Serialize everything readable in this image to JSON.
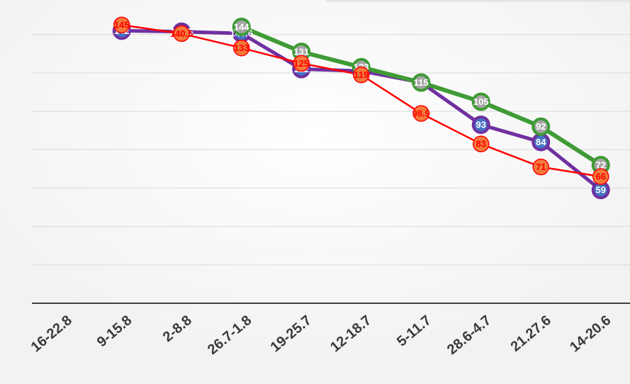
{
  "chart_data": {
    "type": "line",
    "categories": [
      "16-22.8",
      "9-15.8",
      "2-8.8",
      "26.7-1.8",
      "19-25.7",
      "12-18.7",
      "5-11.7",
      "28.6-4.7",
      "21.27.6",
      "14-20.6"
    ],
    "series": [
      {
        "name": "purple",
        "color": "#7030a0",
        "marker_fill": "#4472c4",
        "label_color": "#ffffff",
        "width": 5,
        "values": [
          null,
          142,
          141.5,
          140.6,
          122,
          121,
          115,
          93,
          84,
          59
        ]
      },
      {
        "name": "green",
        "color": "#3f9b35",
        "marker_fill": "#a5a5a5",
        "label_color": "#ffffff",
        "width": 6,
        "values": [
          null,
          null,
          null,
          144,
          131,
          123,
          115,
          105,
          92,
          72
        ]
      },
      {
        "name": "red",
        "color": "#ff0000",
        "marker_fill": "#f47a3c",
        "label_color": "#ff0000",
        "width": 2.5,
        "values": [
          null,
          145,
          140.5,
          133,
          125,
          119,
          98.9,
          83,
          71,
          66
        ]
      }
    ],
    "ylim": [
      0,
      158
    ],
    "yticks": [
      0,
      20,
      40,
      60,
      80,
      100,
      120,
      140
    ],
    "grid": true
  }
}
